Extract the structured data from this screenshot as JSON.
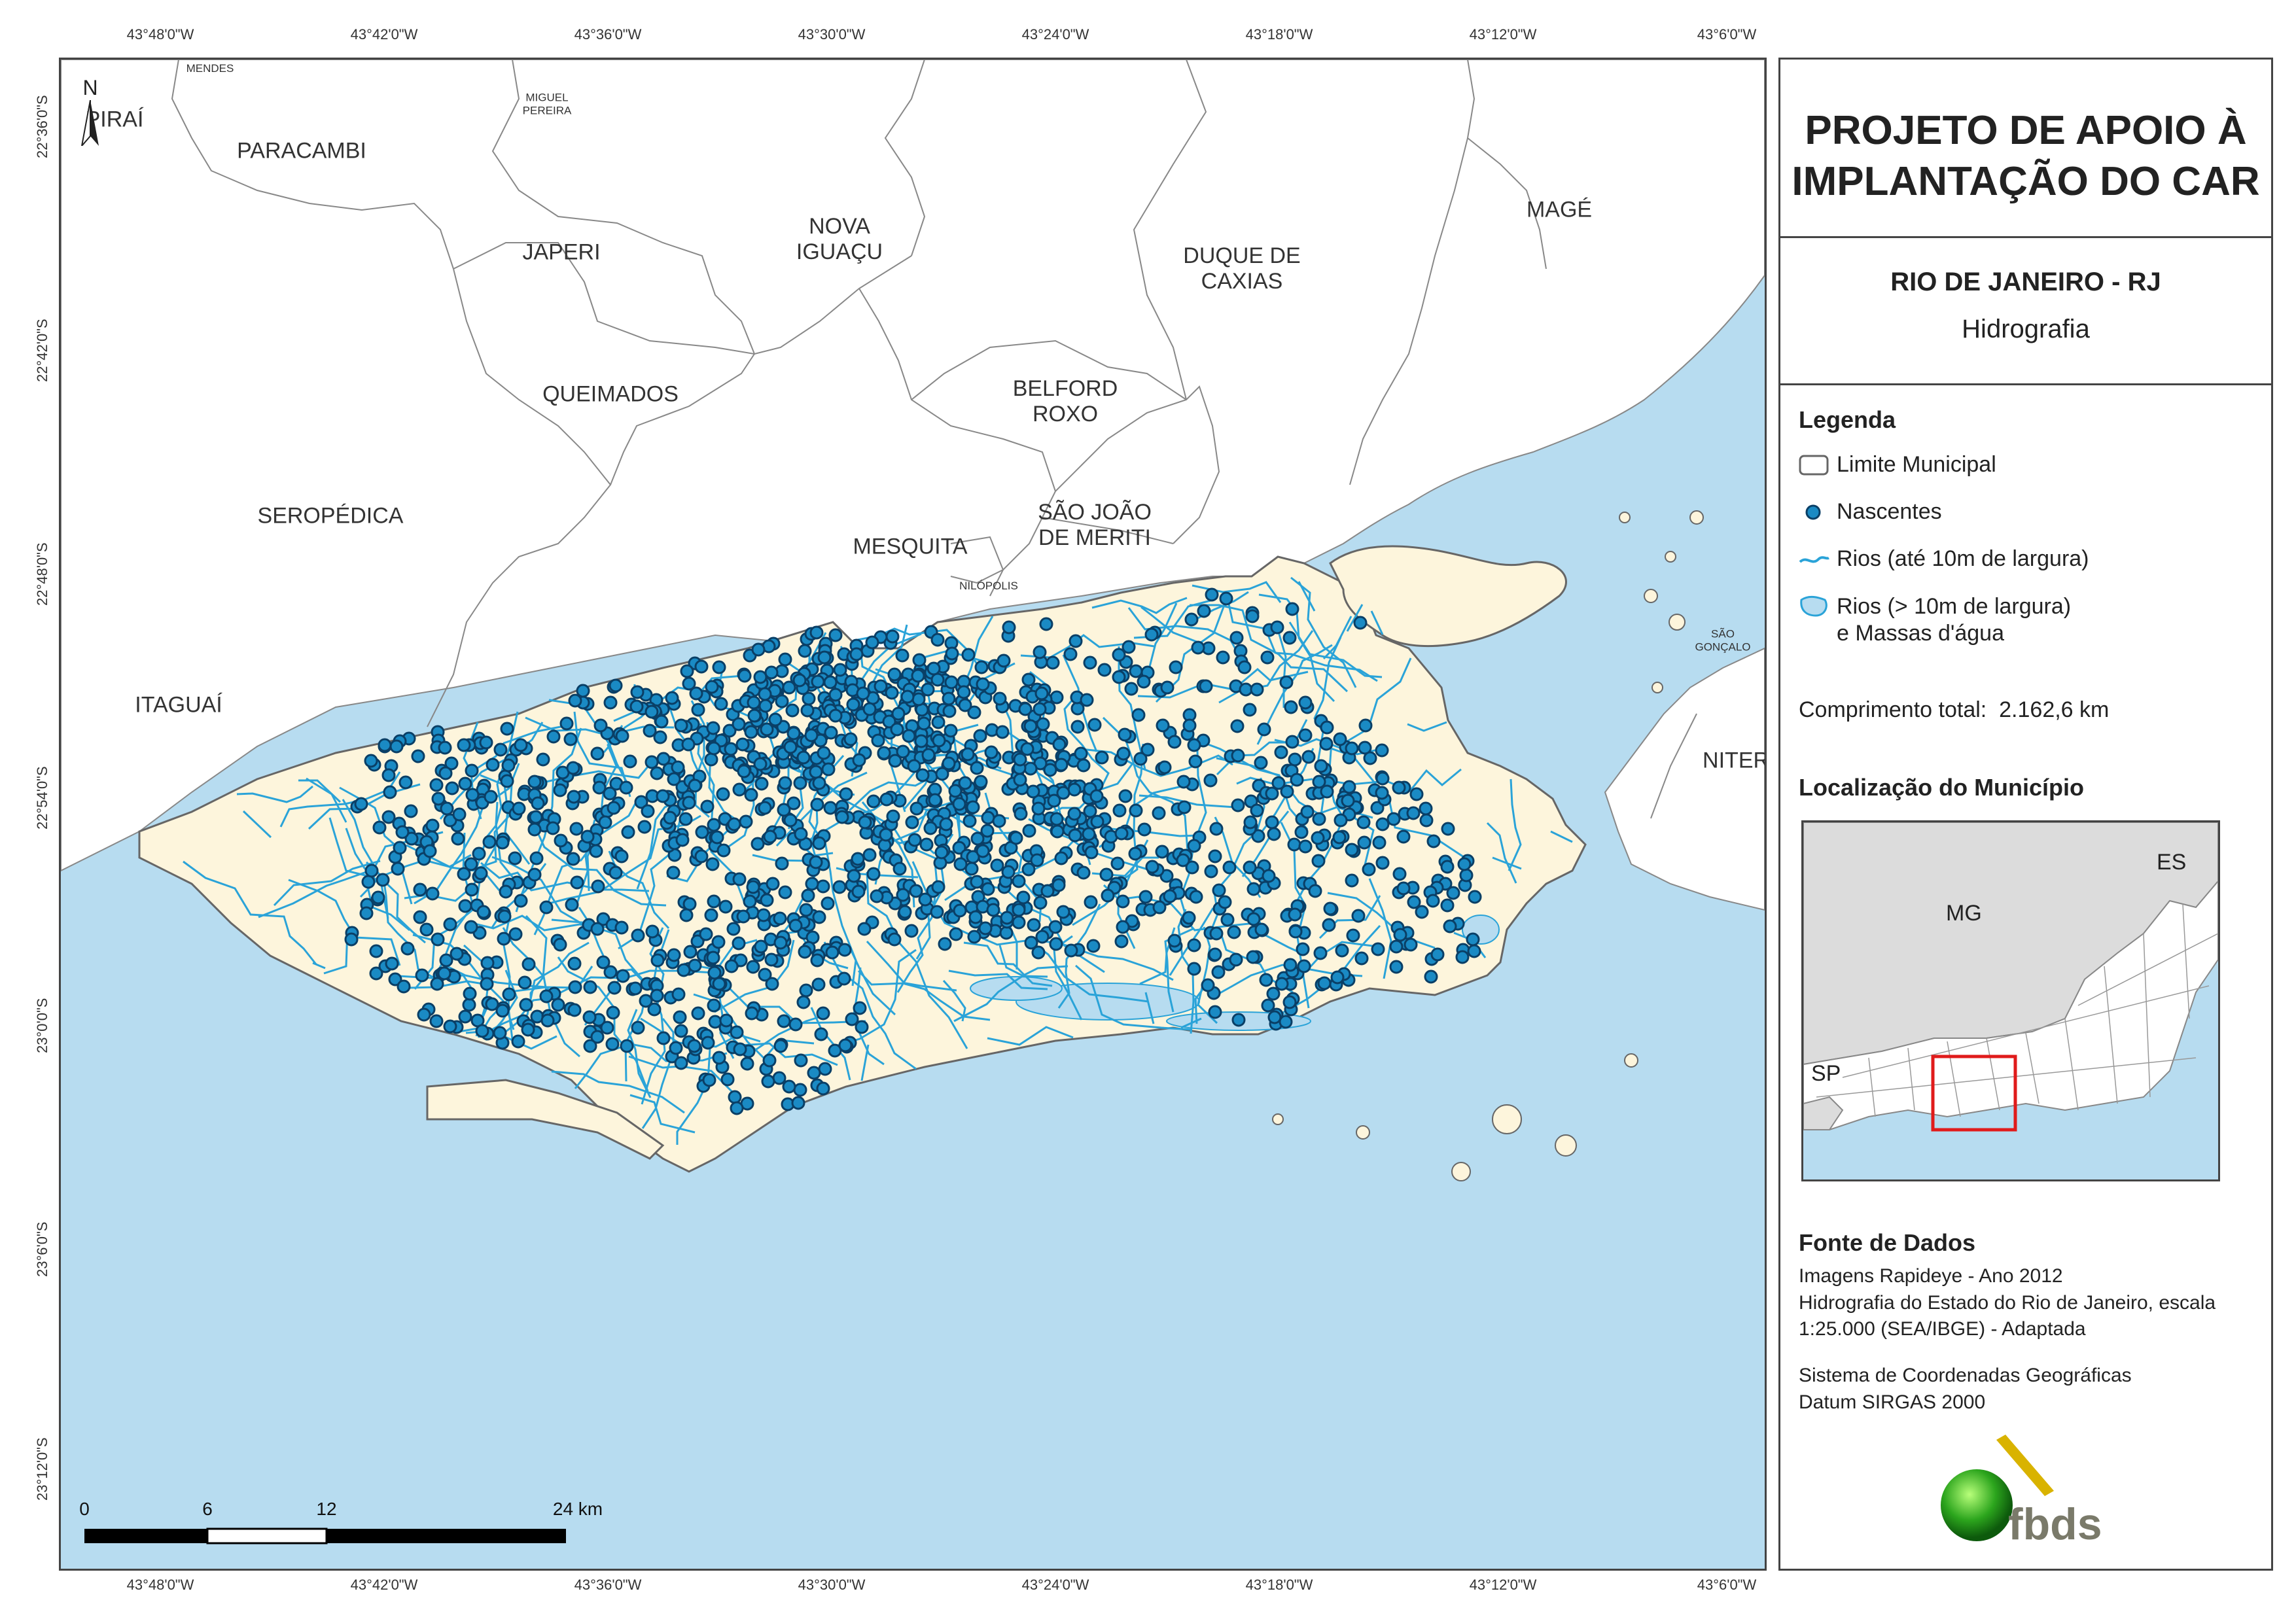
{
  "coordinates": {
    "longitudes": [
      "43°48'0\"W",
      "43°42'0\"W",
      "43°36'0\"W",
      "43°30'0\"W",
      "43°24'0\"W",
      "43°18'0\"W",
      "43°12'0\"W",
      "43°6'0\"W"
    ],
    "latitudes": [
      "22°36'0\"S",
      "22°42'0\"S",
      "22°48'0\"S",
      "22°54'0\"S",
      "23°0'0\"S",
      "23°6'0\"S",
      "23°12'0\"S"
    ]
  },
  "north_arrow": {
    "label": "N"
  },
  "municipalities": [
    {
      "name": "MENDES",
      "size": "small"
    },
    {
      "name": "MIGUEL\nPEREIRA",
      "size": "small"
    },
    {
      "name": "PIRAÍ",
      "size": "normal"
    },
    {
      "name": "PARACAMBI",
      "size": "normal"
    },
    {
      "name": "JAPERI",
      "size": "normal"
    },
    {
      "name": "NOVA\nIGUAÇU",
      "size": "normal"
    },
    {
      "name": "DUQUE DE\nCAXIAS",
      "size": "normal"
    },
    {
      "name": "MAGÉ",
      "size": "normal"
    },
    {
      "name": "QUEIMADOS",
      "size": "normal"
    },
    {
      "name": "BELFORD\nROXO",
      "size": "normal"
    },
    {
      "name": "SEROPÉDICA",
      "size": "normal"
    },
    {
      "name": "SÃO JOÃO\nDE MERITI",
      "size": "normal"
    },
    {
      "name": "MESQUITA",
      "size": "normal"
    },
    {
      "name": "NILÓPOLIS",
      "size": "small"
    },
    {
      "name": "ITAGUAÍ",
      "size": "normal"
    },
    {
      "name": "SÃO\nGONÇALO",
      "size": "small"
    },
    {
      "name": "NITERÓI",
      "size": "normal"
    }
  ],
  "colors": {
    "water": "#b7dcf0",
    "land_other": "#ffffff",
    "municipality_fill": "#fdf5dc",
    "river": "#2aa3d8",
    "spring": "#1a8ac4",
    "spring_outline": "#0a3f66",
    "boundary": "#888888",
    "inset_other_state": "#dcdcdc",
    "locator_box": "#e01b1b"
  },
  "panel": {
    "title": "PROJETO DE APOIO À\nIMPLANTAÇÃO DO CAR",
    "region": "RIO DE JANEIRO - RJ",
    "theme": "Hidrografia",
    "legend_heading": "Legenda",
    "legend_items": [
      {
        "icon": "municipal-boundary-icon",
        "label": "Limite Municipal"
      },
      {
        "icon": "spring-point-icon",
        "label": "Nascentes"
      },
      {
        "icon": "river-line-icon",
        "label": "Rios (até 10m de largura)"
      },
      {
        "icon": "water-body-icon",
        "label": "Rios (> 10m de largura)\ne Massas d'água"
      }
    ],
    "length_label": "Comprimento total:",
    "length_value": "2.162,6 km",
    "location_heading": "Localização do Município",
    "inset_labels": [
      "MG",
      "ES",
      "SP"
    ],
    "source_heading": "Fonte de Dados",
    "source_lines": [
      "Imagens Rapideye - Ano 2012",
      "Hidrografia do Estado do Rio de Janeiro, escala",
      "1:25.000 (SEA/IBGE) - Adaptada"
    ],
    "crs_lines": [
      "Sistema de Coordenadas Geográficas",
      "Datum SIRGAS 2000"
    ],
    "logo_text": "fbds"
  },
  "scale_bar": {
    "labels": [
      "0",
      "6",
      "12",
      "24 km"
    ],
    "distances_km": [
      0,
      6,
      12,
      24
    ]
  }
}
